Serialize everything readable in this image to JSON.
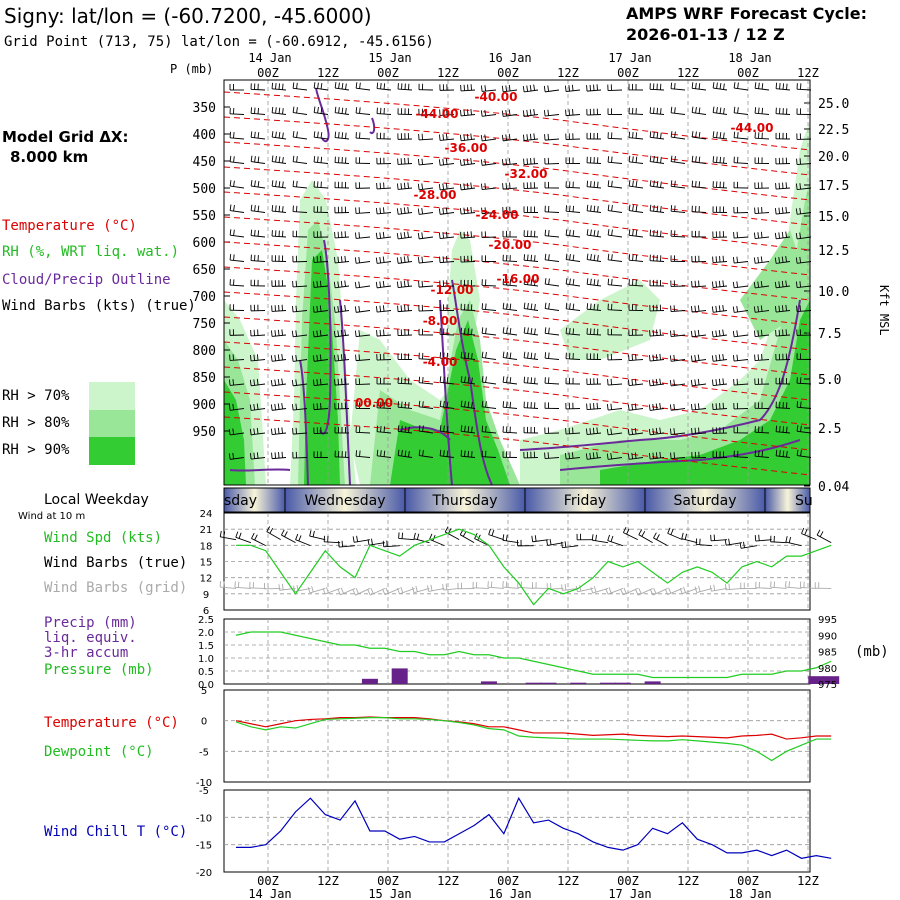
{
  "header": {
    "title": "Signy:  lat/lon = (-60.7200, -45.6000)",
    "grid_point": "Grid Point (713, 75) lat/lon = (-60.6912, -45.6156)",
    "cycle_label": "AMPS WRF Forecast Cycle:",
    "cycle_value": "2026-01-13 / 12  Z",
    "model_grid_label": "Model Grid ΔX:",
    "model_grid_value": "8.000 km"
  },
  "time_axis": {
    "ticks": [
      "00Z",
      "12Z",
      "00Z",
      "12Z",
      "00Z",
      "12Z",
      "00Z",
      "12Z",
      "00Z",
      "12Z"
    ],
    "dates": [
      "14 Jan",
      "15 Jan",
      "16 Jan",
      "17 Jan",
      "18 Jan"
    ]
  },
  "legend_left": {
    "temperature": "Temperature (°C)",
    "rh": "RH (%, WRT liq. wat.)",
    "cloud": "Cloud/Precip Outline",
    "wind": "Wind Barbs (kts) (true)",
    "rh70": "RH > 70%",
    "rh80": "RH > 80%",
    "rh90": "RH > 90%"
  },
  "colors": {
    "temp": "#dd0000",
    "rh70": "#ccf5cc",
    "rh80": "#99e699",
    "rh90": "#33cc33",
    "cloud": "#6a2a9a",
    "wind_green": "#22cc22",
    "chill": "#0000bb",
    "pressure": "#22cc22",
    "precip": "#662288"
  },
  "top_panel": {
    "p_label": "P (mb)",
    "kft_label": "Kft MSL",
    "pressure_levels": [
      "350",
      "400",
      "450",
      "500",
      "550",
      "600",
      "650",
      "700",
      "750",
      "800",
      "850",
      "900",
      "950"
    ],
    "kft_ticks": [
      "25.0",
      "22.5",
      "20.0",
      "17.5",
      "15.0",
      "12.5",
      "10.0",
      "7.5",
      "5.0",
      "2.5",
      "0.04"
    ],
    "temp_labels": [
      "-40.00",
      "-44.00",
      "-44.00",
      "-36.00",
      "-32.00",
      "-28.00",
      "-24.00",
      "-20.00",
      "-16.00",
      "-12.00",
      "-8.00",
      "-4.00",
      "00.00"
    ]
  },
  "weekday_bar": {
    "label": "Local Weekday",
    "days": [
      "sday",
      "Wednesday",
      "Thursday",
      "Friday",
      "Saturday",
      "Su"
    ]
  },
  "wind_panel": {
    "at10m": "Wind at 10 m",
    "spd_label": "Wind Spd (kts)",
    "barbs_true": "Wind Barbs (true)",
    "barbs_grid": "Wind Barbs (grid)",
    "y_ticks": [
      "24",
      "21",
      "18",
      "15",
      "12",
      "9",
      "6"
    ]
  },
  "precip_panel": {
    "precip_label1": "Precip (mm)",
    "precip_label2": "liq. equiv.",
    "precip_label3": "3-hr accum",
    "pressure_label": "Pressure (mb)",
    "left_ticks": [
      "2.5",
      "2.0",
      "1.5",
      "1.0",
      "0.5",
      "0.0"
    ],
    "right_ticks": [
      "995",
      "990",
      "985",
      "980",
      "975"
    ],
    "unit": "(mb)"
  },
  "temp_panel": {
    "temp_label": "Temperature (°C)",
    "dew_label": "Dewpoint (°C)",
    "y_ticks": [
      "5",
      "0",
      "-5",
      "-10"
    ]
  },
  "chill_panel": {
    "label": "Wind Chill T (°C)",
    "y_ticks": [
      "-5",
      "-10",
      "-15",
      "-20"
    ]
  },
  "chart_data": {
    "type": "line",
    "x_hours_from_cycle": [
      0,
      3,
      6,
      9,
      12,
      15,
      18,
      21,
      24,
      27,
      30,
      33,
      36,
      39,
      42,
      45,
      48,
      51,
      54,
      57,
      60,
      63,
      66,
      69,
      72,
      75,
      78,
      81,
      84,
      87,
      90,
      93,
      96,
      99,
      102,
      105,
      108,
      111,
      114,
      117,
      120
    ],
    "series": [
      {
        "name": "Wind Spd (kts)",
        "values": [
          18,
          18,
          17,
          13,
          9,
          13,
          17,
          14,
          12,
          18,
          17,
          16,
          18,
          19,
          20,
          21,
          20,
          18,
          14,
          11,
          7,
          10,
          9,
          10,
          12,
          15,
          14,
          15,
          13,
          11,
          13,
          14,
          13,
          11,
          14,
          15,
          14,
          16,
          16,
          17,
          18
        ]
      },
      {
        "name": "Pressure (mb)",
        "values": [
          990,
          991,
          991,
          991,
          990,
          989,
          988,
          987,
          987,
          986,
          986,
          985,
          985,
          984,
          984,
          985,
          984,
          984,
          983,
          983,
          982,
          981,
          980,
          979,
          978,
          978,
          978,
          978,
          977,
          977,
          977,
          977,
          977,
          977,
          978,
          978,
          978,
          979,
          979,
          980,
          982
        ]
      },
      {
        "name": "Precip (mm)",
        "values": [
          0,
          0,
          0,
          0,
          0,
          0,
          0,
          0,
          0,
          0.2,
          0,
          0.6,
          0,
          0,
          0,
          0,
          0,
          0.1,
          0,
          0,
          0.05,
          0.05,
          0,
          0.05,
          0,
          0.05,
          0.05,
          0,
          0.1,
          0,
          0,
          0,
          0,
          0,
          0,
          0,
          0,
          0,
          0,
          0.3,
          0.3
        ]
      },
      {
        "name": "Temperature (°C)",
        "values": [
          0,
          -0.5,
          -1,
          -0.5,
          0,
          0.2,
          0.3,
          0.5,
          0.5,
          0.6,
          0.5,
          0.5,
          0.5,
          0.3,
          0,
          -0.2,
          -0.5,
          -1,
          -1,
          -1.5,
          -2,
          -2,
          -2,
          -2.2,
          -2.4,
          -2.3,
          -2.2,
          -2.4,
          -2.5,
          -2.6,
          -2.5,
          -2.6,
          -2.7,
          -2.8,
          -2.5,
          -2.4,
          -2.2,
          -3,
          -2.8,
          -2.5,
          -2.5
        ]
      },
      {
        "name": "Dewpoint (°C)",
        "values": [
          -0.2,
          -1,
          -1.5,
          -1,
          -1.2,
          -0.5,
          0.2,
          0.3,
          0.4,
          0.5,
          0.5,
          0.3,
          0.3,
          0.2,
          0,
          -0.3,
          -0.7,
          -1.3,
          -1.5,
          -2.5,
          -2.7,
          -2.8,
          -2.9,
          -3,
          -3,
          -3,
          -3.1,
          -3.2,
          -3.3,
          -3.3,
          -3.1,
          -3.3,
          -3.5,
          -3.7,
          -4,
          -5,
          -6.5,
          -5,
          -4,
          -3,
          -3
        ]
      },
      {
        "name": "Wind Chill T (°C)",
        "values": [
          -15.5,
          -15.5,
          -15,
          -12.5,
          -9,
          -6.5,
          -9.5,
          -10.5,
          -7,
          -12.5,
          -12.5,
          -14,
          -13.5,
          -14.5,
          -14.5,
          -13,
          -11.5,
          -9.5,
          -13,
          -6.5,
          -11,
          -10.5,
          -12,
          -13,
          -14.5,
          -15.5,
          -16,
          -15,
          -12,
          -13,
          -11,
          -14,
          -15,
          -16.5,
          -16.5,
          -16,
          -17,
          -16,
          -17.5,
          -17,
          -17.5
        ]
      }
    ],
    "ylim_wind": [
      6,
      24
    ],
    "ylim_precip": [
      0,
      2.5
    ],
    "ylim_pressure": [
      975,
      995
    ],
    "ylim_temp": [
      -10,
      5
    ],
    "ylim_chill": [
      -20,
      -5
    ]
  }
}
